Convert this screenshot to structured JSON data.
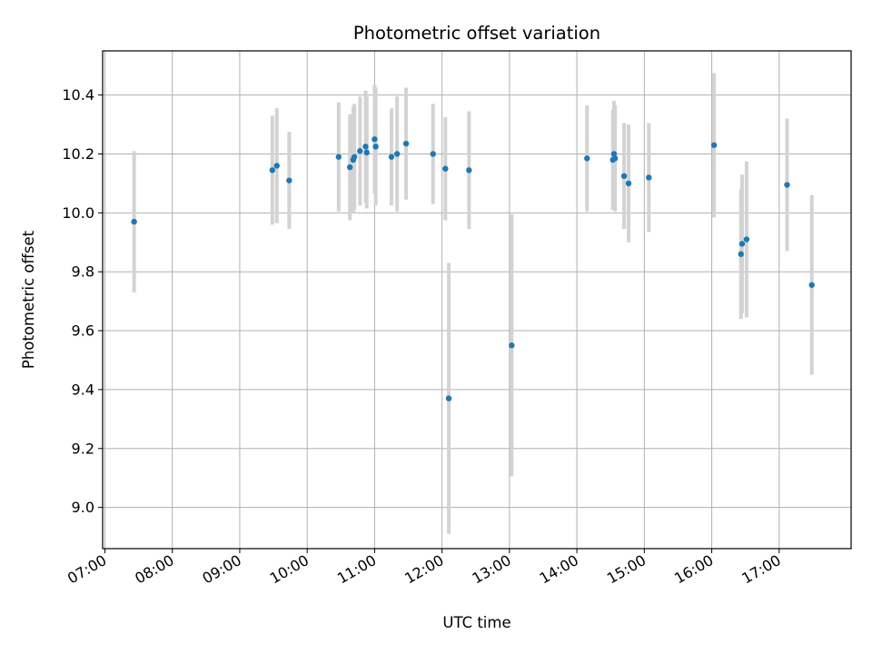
{
  "chart_data": {
    "type": "scatter",
    "title": "Photometric offset variation",
    "xlabel": "UTC time",
    "ylabel": "Photometric offset",
    "x_unit": "hours (UTC)",
    "xlim": [
      "06:58",
      "18:04"
    ],
    "ylim": [
      8.86,
      10.55
    ],
    "x_ticks": [
      "07:00",
      "08:00",
      "09:00",
      "10:00",
      "11:00",
      "12:00",
      "13:00",
      "14:00",
      "15:00",
      "16:00",
      "17:00"
    ],
    "y_ticks": [
      9.0,
      9.2,
      9.4,
      9.6,
      9.8,
      10.0,
      10.2,
      10.4
    ],
    "y_tick_labels": [
      "9.0",
      "9.2",
      "9.4",
      "9.6",
      "9.8",
      "10.0",
      "10.2",
      "10.4"
    ],
    "grid": true,
    "marker_color": "#1f77b4",
    "errorbar_color": "#d3d3d3",
    "points": [
      {
        "t": "07:26",
        "y": 9.97,
        "err": 0.24
      },
      {
        "t": "09:29",
        "y": 10.145,
        "err": 0.185
      },
      {
        "t": "09:33",
        "y": 10.16,
        "err": 0.195
      },
      {
        "t": "09:44",
        "y": 10.11,
        "err": 0.165
      },
      {
        "t": "10:28",
        "y": 10.19,
        "err": 0.185
      },
      {
        "t": "10:38",
        "y": 10.155,
        "err": 0.18
      },
      {
        "t": "10:41",
        "y": 10.18,
        "err": 0.18
      },
      {
        "t": "10:42",
        "y": 10.19,
        "err": 0.18
      },
      {
        "t": "10:47",
        "y": 10.21,
        "err": 0.185
      },
      {
        "t": "10:52",
        "y": 10.225,
        "err": 0.19
      },
      {
        "t": "10:53",
        "y": 10.205,
        "err": 0.19
      },
      {
        "t": "11:00",
        "y": 10.25,
        "err": 0.185
      },
      {
        "t": "11:01",
        "y": 10.225,
        "err": 0.2
      },
      {
        "t": "11:15",
        "y": 10.19,
        "err": 0.165
      },
      {
        "t": "11:20",
        "y": 10.2,
        "err": 0.195
      },
      {
        "t": "11:28",
        "y": 10.235,
        "err": 0.19
      },
      {
        "t": "11:52",
        "y": 10.2,
        "err": 0.17
      },
      {
        "t": "12:03",
        "y": 10.15,
        "err": 0.175
      },
      {
        "t": "12:06",
        "y": 9.37,
        "err": 0.46
      },
      {
        "t": "12:24",
        "y": 10.145,
        "err": 0.2
      },
      {
        "t": "13:02",
        "y": 9.55,
        "err": 0.445
      },
      {
        "t": "14:09",
        "y": 10.185,
        "err": 0.18
      },
      {
        "t": "14:32",
        "y": 10.18,
        "err": 0.17
      },
      {
        "t": "14:33",
        "y": 10.2,
        "err": 0.18
      },
      {
        "t": "14:34",
        "y": 10.185,
        "err": 0.18
      },
      {
        "t": "14:42",
        "y": 10.125,
        "err": 0.18
      },
      {
        "t": "14:46",
        "y": 10.1,
        "err": 0.2
      },
      {
        "t": "15:04",
        "y": 10.12,
        "err": 0.185
      },
      {
        "t": "16:02",
        "y": 10.23,
        "err": 0.245
      },
      {
        "t": "16:26",
        "y": 9.86,
        "err": 0.22
      },
      {
        "t": "16:27",
        "y": 9.895,
        "err": 0.235
      },
      {
        "t": "16:31",
        "y": 9.91,
        "err": 0.265
      },
      {
        "t": "17:07",
        "y": 10.095,
        "err": 0.225
      },
      {
        "t": "17:29",
        "y": 9.755,
        "err": 0.305
      }
    ]
  }
}
